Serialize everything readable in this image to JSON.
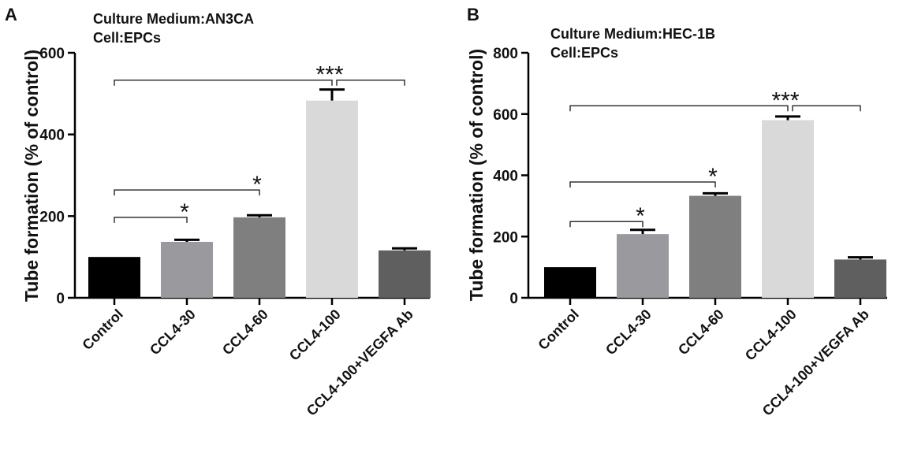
{
  "panels": [
    {
      "letter": "A",
      "medium_line": "Culture Medium:AN3CA",
      "cell_line": "Cell:EPCs"
    },
    {
      "letter": "B",
      "medium_line": "Culture Medium:HEC-1B",
      "cell_line": "Cell:EPCs"
    }
  ],
  "chart_data": [
    {
      "type": "bar",
      "title": "Culture Medium:AN3CA",
      "subtitle": "Cell:EPCs",
      "xlabel": "",
      "ylabel": "Tube formation (% of control)",
      "ylim": [
        0,
        600
      ],
      "yticks": [
        0,
        200,
        400,
        600
      ],
      "categories": [
        "Control",
        "CCL4-30",
        "CCL4-60",
        "CCL4-100",
        "CCL4-100+VEGFA Ab"
      ],
      "values": [
        100,
        137,
        197,
        483,
        116
      ],
      "errors": [
        0,
        5,
        5,
        27,
        5
      ],
      "colors": [
        "#000000",
        "#9a9a9e",
        "#7f7f7f",
        "#d9d9d9",
        "#5f5f5f"
      ],
      "significance": [
        {
          "from": 0,
          "to": 1,
          "label": "*",
          "level": 197
        },
        {
          "from": 0,
          "to": 2,
          "label": "*",
          "level": 264
        },
        {
          "from": 0,
          "to": 3,
          "label": "***",
          "level": 533,
          "to_right": 4
        }
      ],
      "grid": false
    },
    {
      "type": "bar",
      "title": "Culture Medium:HEC-1B",
      "subtitle": "Cell:EPCs",
      "xlabel": "",
      "ylabel": "Tube formation (% of control)",
      "ylim": [
        0,
        800
      ],
      "yticks": [
        0,
        200,
        400,
        600,
        800
      ],
      "categories": [
        "Control",
        "CCL4-30",
        "CCL4-60",
        "CCL4-100",
        "CCL4-100+VEGFA Ab"
      ],
      "values": [
        100,
        208,
        333,
        580,
        125
      ],
      "errors": [
        0,
        14,
        8,
        12,
        7
      ],
      "colors": [
        "#000000",
        "#9a9a9e",
        "#7f7f7f",
        "#d9d9d9",
        "#5f5f5f"
      ],
      "significance": [
        {
          "from": 0,
          "to": 1,
          "label": "*",
          "level": 249
        },
        {
          "from": 0,
          "to": 2,
          "label": "*",
          "level": 378
        },
        {
          "from": 0,
          "to": 3,
          "label": "***",
          "level": 627,
          "to_right": 4
        }
      ],
      "grid": false
    }
  ]
}
